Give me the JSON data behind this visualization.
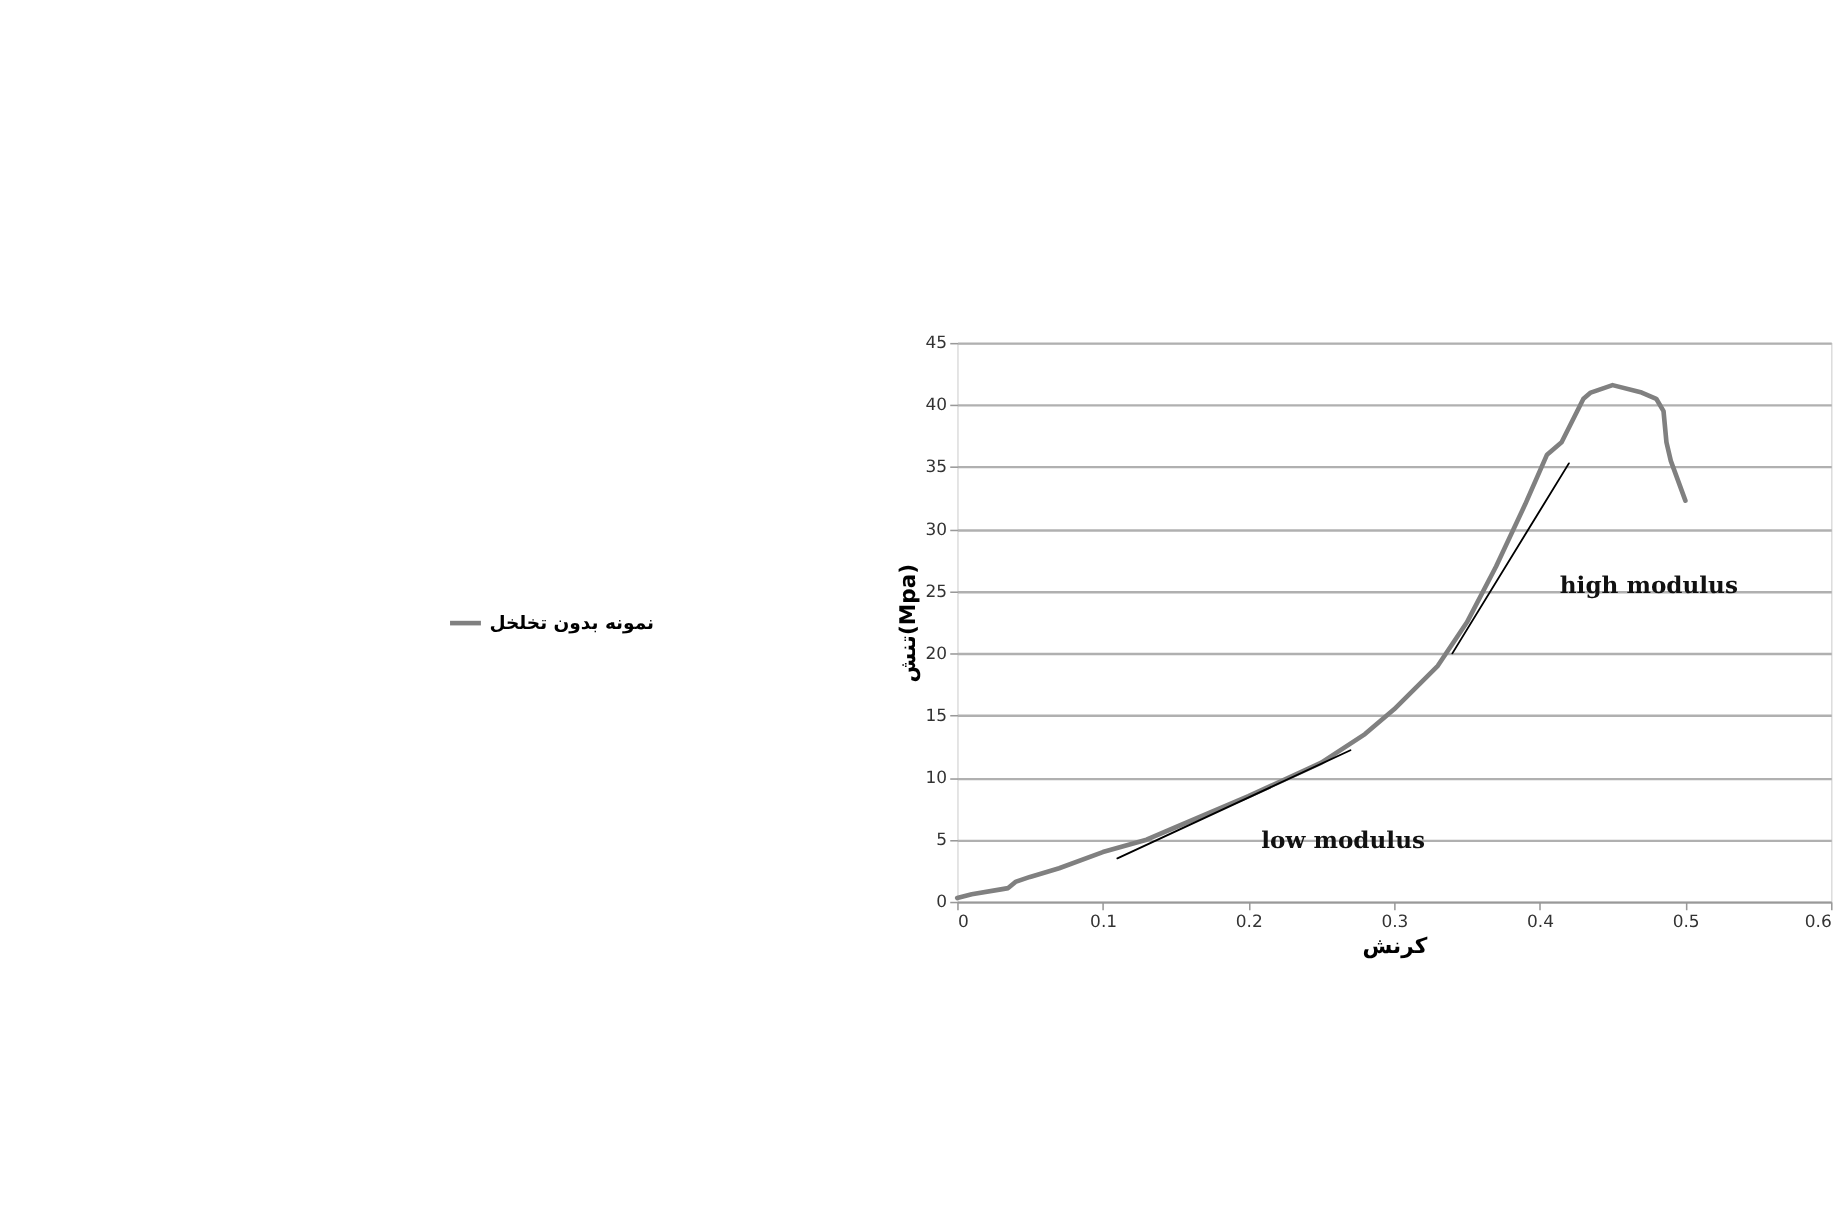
{
  "chart_data": {
    "type": "line",
    "xlabel": "کرنش",
    "ylabel": "تنش(Mpa)",
    "xlim": [
      0,
      0.6
    ],
    "xticks": [
      0,
      0.1,
      0.2,
      0.3,
      0.4,
      0.5,
      0.6
    ],
    "ylim": [
      0,
      45
    ],
    "yticks": [
      0,
      5,
      10,
      15,
      20,
      25,
      30,
      35,
      40,
      45
    ],
    "grid": "y",
    "legend": "left",
    "series": [
      {
        "name": "نمونه بدون تخلخل",
        "color": "#808080",
        "x": [
          0,
          0.01,
          0.03,
          0.035,
          0.04,
          0.05,
          0.07,
          0.1,
          0.13,
          0.15,
          0.2,
          0.25,
          0.28,
          0.3,
          0.33,
          0.35,
          0.37,
          0.39,
          0.405,
          0.415,
          0.43,
          0.435,
          0.45,
          0.47,
          0.48,
          0.485,
          0.487,
          0.49,
          0.5
        ],
        "values": [
          0.3,
          0.6,
          1,
          1.1,
          1.6,
          2,
          2.7,
          4,
          5,
          6,
          8.5,
          11.2,
          13.5,
          15.5,
          19,
          22.5,
          27,
          32,
          36,
          37,
          40.5,
          41,
          41.6,
          41,
          40.5,
          39.5,
          37,
          35.5,
          32.3
        ]
      },
      {
        "type": "line",
        "color": "#000000",
        "x": [
          0.11,
          0.27
        ],
        "values": [
          3.5,
          12.2
        ]
      },
      {
        "type": "line",
        "color": "#000000",
        "x": [
          0.34,
          0.42
        ],
        "values": [
          20,
          35.3
        ]
      }
    ],
    "annotations": [
      "low modulus",
      "high modulus"
    ]
  }
}
